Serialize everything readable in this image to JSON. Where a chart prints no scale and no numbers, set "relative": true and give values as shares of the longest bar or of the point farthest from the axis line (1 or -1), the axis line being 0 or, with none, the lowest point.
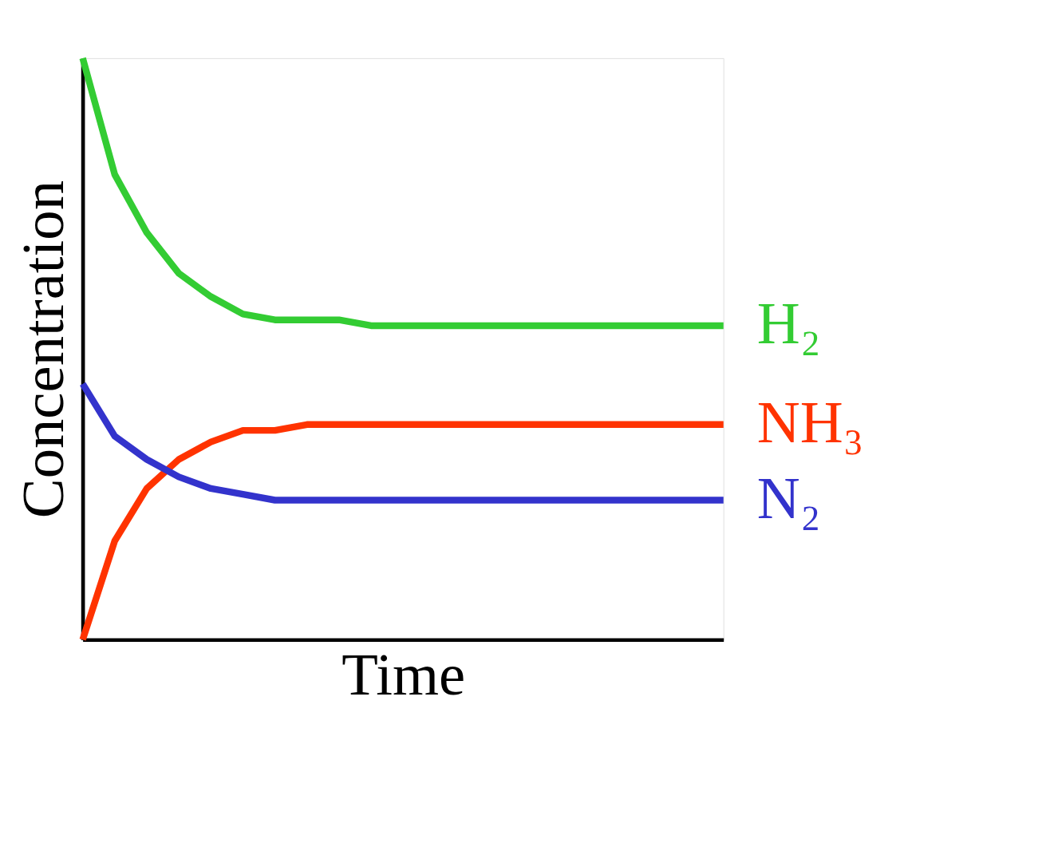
{
  "chart_data": {
    "type": "line",
    "relative": true,
    "xlabel": "Time",
    "ylabel": "Concentration",
    "legend": false,
    "grid": false,
    "marker": "none",
    "line_style": "solid",
    "categories": [
      null,
      null,
      null,
      null,
      null,
      null,
      null,
      null,
      null,
      null,
      null,
      null,
      null,
      null,
      null,
      null,
      null,
      null,
      null,
      null,
      null
    ],
    "series": [
      {
        "name": "H₂",
        "color": "#33cc33",
        "values": [
          1,
          0.8,
          0.7,
          0.63,
          0.59,
          0.56,
          0.55,
          0.55,
          0.55,
          0.54,
          0.54,
          0.54,
          0.54,
          0.54,
          0.54,
          0.54,
          0.54,
          0.54,
          0.54,
          0.54,
          0.54
        ]
      },
      {
        "name": "NH₃",
        "color": "#ff3300",
        "values": [
          0.0,
          0.17,
          0.26,
          0.31,
          0.34,
          0.36,
          0.36,
          0.37,
          0.37,
          0.37,
          0.37,
          0.37,
          0.37,
          0.37,
          0.37,
          0.37,
          0.37,
          0.37,
          0.37,
          0.37,
          0.37
        ]
      },
      {
        "name": "N₂",
        "color": "#3333cc",
        "values": [
          0.44,
          0.35,
          0.31,
          0.28,
          0.26,
          0.25,
          0.24,
          0.24,
          0.24,
          0.24,
          0.24,
          0.24,
          0.24,
          0.24,
          0.24,
          0.24,
          0.24,
          0.24,
          0.24,
          0.24,
          0.24
        ]
      }
    ]
  }
}
